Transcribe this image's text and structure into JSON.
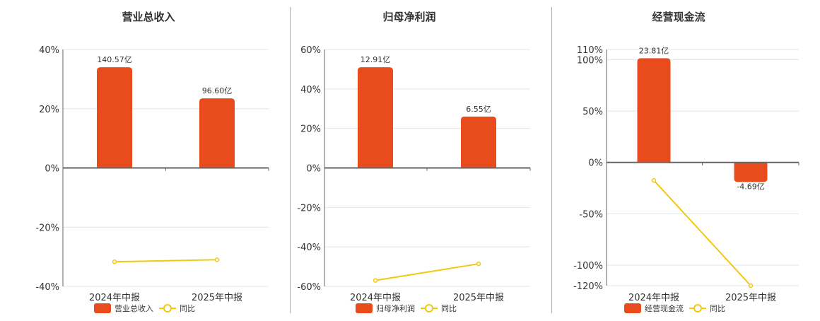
{
  "colors": {
    "bar": "#E84C1C",
    "line": "#F2C811",
    "grid": "#dfe4ee",
    "axis": "#666666"
  },
  "legend": {
    "yoy_label": "同比"
  },
  "chart_data": [
    {
      "type": "bar+line",
      "title": "营业总收入",
      "categories": [
        "2024年中报",
        "2025年中报"
      ],
      "bar_series": {
        "name": "营业总收入",
        "values": [
          34.0,
          23.5
        ],
        "labels": [
          "140.57亿",
          "96.60亿"
        ]
      },
      "line_series": {
        "name": "同比",
        "values": [
          -31.7,
          -31.0
        ]
      },
      "yticks": [
        40,
        20,
        0,
        -20,
        -40
      ],
      "ytick_labels": [
        "40%",
        "20%",
        "0%",
        "-20%",
        "-40%"
      ],
      "ylim": [
        -40,
        40
      ],
      "grid": true,
      "legend_position": "bottom"
    },
    {
      "type": "bar+line",
      "title": "归母净利润",
      "categories": [
        "2024年中报",
        "2025年中报"
      ],
      "bar_series": {
        "name": "归母净利润",
        "values": [
          51.0,
          26.0
        ],
        "labels": [
          "12.91亿",
          "6.55亿"
        ]
      },
      "line_series": {
        "name": "同比",
        "values": [
          -57.0,
          -48.6
        ]
      },
      "yticks": [
        60,
        40,
        20,
        0,
        -20,
        -40,
        -60
      ],
      "ytick_labels": [
        "60%",
        "40%",
        "20%",
        "0%",
        "-20%",
        "-40%",
        "-60%"
      ],
      "ylim": [
        -60,
        60
      ],
      "grid": true,
      "legend_position": "bottom"
    },
    {
      "type": "bar+line",
      "title": "经营现金流",
      "categories": [
        "2024年中报",
        "2025年中报"
      ],
      "bar_series": {
        "name": "经营现金流",
        "values": [
          101.5,
          -19.0
        ],
        "labels": [
          "23.81亿",
          "-4.69亿"
        ]
      },
      "line_series": {
        "name": "同比",
        "values": [
          -17.5,
          -120.0
        ]
      },
      "yticks": [
        110,
        100,
        50,
        0,
        -50,
        -100,
        -120
      ],
      "ytick_labels": [
        "110%",
        "100%",
        "50%",
        "0%",
        "-50%",
        "-100%",
        "-120%"
      ],
      "ylim": [
        -120,
        110
      ],
      "grid": true,
      "legend_position": "bottom"
    }
  ]
}
